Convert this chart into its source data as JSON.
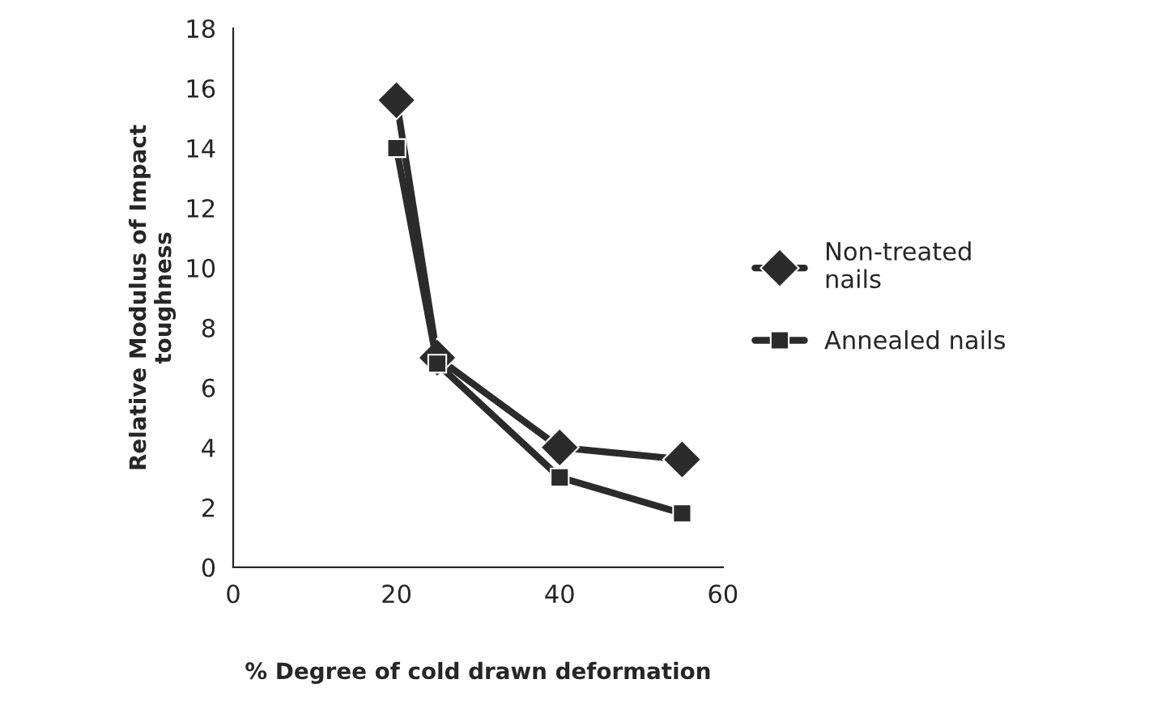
{
  "chart_data": {
    "type": "line",
    "xlabel": "% Degree of cold drawn deformation",
    "ylabel": "Relative Modulus of Impact\ntoughness",
    "x": [
      20,
      25,
      40,
      55
    ],
    "series": [
      {
        "name": "Non-treated\nnails",
        "color": "#2b2b2b",
        "values": [
          15.6,
          7,
          4,
          3.6
        ],
        "marker": "diamond"
      },
      {
        "name": "Annealed nails",
        "color": "#2b2b2b",
        "values": [
          14,
          6.8,
          3,
          1.8
        ],
        "marker": "square"
      }
    ],
    "xlim": [
      0,
      60
    ],
    "xticks": [
      0,
      20,
      40,
      60
    ],
    "ylim": [
      0,
      18
    ],
    "yticks": [
      0,
      2,
      4,
      6,
      8,
      10,
      12,
      14,
      16,
      18
    ],
    "grid": false,
    "legend": "right",
    "line_style": "solid"
  }
}
